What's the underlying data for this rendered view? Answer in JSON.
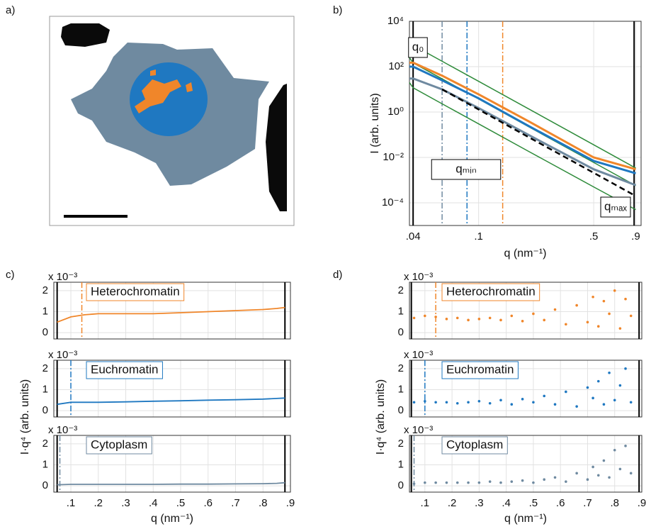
{
  "panel_labels": [
    "a)",
    "b)",
    "c)",
    "d)"
  ],
  "chart_data": [
    {
      "type": "line",
      "xlog": true,
      "ylog": true,
      "grid": true,
      "xlabel": "q (nm⁻¹)",
      "ylabel": "I (arb. units)",
      "xlim": [
        0.038,
        0.97
      ],
      "ylim": [
        1e-05,
        10000
      ],
      "xticks": [
        {
          "value": 0.04,
          "label": ".04"
        },
        {
          "value": 0.1,
          "label": ".1"
        },
        {
          "value": 0.5,
          "label": ".5"
        },
        {
          "value": 0.9,
          "label": ".9"
        }
      ],
      "yticks": [
        {
          "value": 0.0001,
          "label": "10⁻⁴"
        },
        {
          "value": 0.01,
          "label": "10⁻²"
        },
        {
          "value": 1,
          "label": "10⁰"
        },
        {
          "value": 100,
          "label": "10²"
        },
        {
          "value": 10000,
          "label": "10⁴"
        }
      ],
      "annotations": [
        "q₀",
        "qₘᵢₙ",
        "qₘₐₓ"
      ],
      "x": [
        0.038,
        0.04,
        0.06,
        0.1,
        0.2,
        0.5,
        0.9
      ],
      "series": [
        {
          "color": "#2e8b3a",
          "style": "solid",
          "values": [
            1500,
            875,
            173,
            22.5,
            1.41,
            0.036,
            0.0034
          ]
        },
        {
          "color": "#2e8b3a",
          "style": "solid",
          "values": [
            250,
            146,
            29,
            3.75,
            0.23,
            0.006,
            0.00057
          ]
        },
        {
          "color": "#2e8b3a",
          "style": "solid",
          "values": [
            20,
            11.7,
            2.3,
            0.3,
            0.019,
            0.0005,
            5e-05
          ]
        },
        {
          "color": "#f0862a",
          "style": "solid",
          "values": [
            150,
            150,
            40,
            6,
            0.4,
            0.01,
            0.003
          ]
        },
        {
          "color": "#1f78c1",
          "style": "solid",
          "values": [
            100,
            100,
            25,
            4,
            0.25,
            0.007,
            0.002
          ]
        },
        {
          "color": "#6f8aa0",
          "style": "solid",
          "values": [
            30,
            30,
            10,
            1.5,
            0.1,
            0.003,
            0.0006
          ]
        },
        {
          "color": "#000000",
          "style": "dashed",
          "values": [
            null,
            null,
            10,
            1.3,
            0.08,
            0.0021,
            0.0002
          ]
        }
      ],
      "vlines": [
        {
          "x": 0.04,
          "color": "#000000",
          "style": "solid"
        },
        {
          "x": 0.06,
          "color": "#6f8aa0",
          "style": "dashdot"
        },
        {
          "x": 0.085,
          "color": "#1f78c1",
          "style": "dashdot"
        },
        {
          "x": 0.14,
          "color": "#f0862a",
          "style": "dashdot"
        },
        {
          "x": 0.88,
          "color": "#000000",
          "style": "solid"
        }
      ]
    },
    {
      "type": "line",
      "grid": true,
      "y_multiplier": "x 10⁻³",
      "xlim": [
        0.038,
        0.9
      ],
      "ylim": [
        -0.3,
        2.4
      ],
      "yticks": [
        0,
        1,
        2
      ],
      "x": [
        0.05,
        0.1,
        0.15,
        0.2,
        0.3,
        0.4,
        0.5,
        0.6,
        0.7,
        0.8,
        0.85,
        0.88
      ],
      "series": [
        {
          "name": "Heterochromatin",
          "color": "#f0862a",
          "values": [
            0.5,
            0.75,
            0.85,
            0.9,
            0.9,
            0.9,
            0.95,
            1.0,
            1.05,
            1.1,
            1.15,
            1.2
          ]
        }
      ],
      "vlines": [
        {
          "x": 0.05,
          "color": "#000000",
          "style": "solid"
        },
        {
          "x": 0.14,
          "color": "#f0862a",
          "style": "dashdot"
        },
        {
          "x": 0.88,
          "color": "#000000",
          "style": "solid"
        }
      ]
    },
    {
      "type": "line",
      "grid": true,
      "y_multiplier": "x 10⁻³",
      "ylabel": "I·q⁴ (arb. units)",
      "xlim": [
        0.038,
        0.9
      ],
      "ylim": [
        -0.3,
        2.4
      ],
      "yticks": [
        0,
        1,
        2
      ],
      "x": [
        0.05,
        0.1,
        0.15,
        0.2,
        0.3,
        0.4,
        0.5,
        0.6,
        0.7,
        0.8,
        0.85,
        0.88
      ],
      "series": [
        {
          "name": "Euchromatin",
          "color": "#1f78c1",
          "values": [
            0.3,
            0.4,
            0.4,
            0.4,
            0.42,
            0.45,
            0.47,
            0.5,
            0.52,
            0.55,
            0.58,
            0.6
          ]
        }
      ],
      "vlines": [
        {
          "x": 0.05,
          "color": "#000000",
          "style": "solid"
        },
        {
          "x": 0.1,
          "color": "#1f78c1",
          "style": "dashdot"
        },
        {
          "x": 0.88,
          "color": "#000000",
          "style": "solid"
        }
      ]
    },
    {
      "type": "line",
      "grid": true,
      "y_multiplier": "x 10⁻³",
      "xlabel": "q (nm⁻¹)",
      "xlim": [
        0.038,
        0.9
      ],
      "ylim": [
        -0.3,
        2.4
      ],
      "yticks": [
        0,
        1,
        2
      ],
      "xticks": [
        {
          "value": 0.1,
          "label": ".1"
        },
        {
          "value": 0.2,
          "label": ".2"
        },
        {
          "value": 0.3,
          "label": ".3"
        },
        {
          "value": 0.4,
          "label": ".4"
        },
        {
          "value": 0.5,
          "label": ".5"
        },
        {
          "value": 0.6,
          "label": ".6"
        },
        {
          "value": 0.7,
          "label": ".7"
        },
        {
          "value": 0.8,
          "label": ".8"
        },
        {
          "value": 0.9,
          "label": ".9"
        }
      ],
      "x": [
        0.05,
        0.1,
        0.15,
        0.2,
        0.3,
        0.4,
        0.5,
        0.6,
        0.7,
        0.8,
        0.85,
        0.88
      ],
      "series": [
        {
          "name": "Cytoplasm",
          "color": "#6f8aa0",
          "values": [
            0.05,
            0.07,
            0.07,
            0.07,
            0.07,
            0.07,
            0.08,
            0.08,
            0.09,
            0.1,
            0.12,
            0.15
          ]
        }
      ],
      "vlines": [
        {
          "x": 0.05,
          "color": "#000000",
          "style": "solid"
        },
        {
          "x": 0.06,
          "color": "#6f8aa0",
          "style": "dashdot"
        },
        {
          "x": 0.88,
          "color": "#000000",
          "style": "solid"
        }
      ]
    },
    {
      "type": "scatter",
      "grid": true,
      "y_multiplier": "x 10⁻³",
      "xlim": [
        0.043,
        0.9
      ],
      "ylim": [
        -0.3,
        2.4
      ],
      "yticks": [
        0,
        1,
        2
      ],
      "x": [
        0.06,
        0.1,
        0.14,
        0.18,
        0.22,
        0.26,
        0.3,
        0.34,
        0.38,
        0.42,
        0.46,
        0.5,
        0.54,
        0.58,
        0.62,
        0.66,
        0.7,
        0.72,
        0.74,
        0.76,
        0.78,
        0.8,
        0.82,
        0.84,
        0.86
      ],
      "series": [
        {
          "name": "Heterochromatin",
          "color": "#f0862a",
          "values": [
            0.7,
            0.8,
            0.75,
            0.65,
            0.7,
            0.6,
            0.65,
            0.7,
            0.6,
            0.8,
            0.55,
            0.9,
            0.6,
            1.1,
            0.4,
            1.3,
            0.5,
            1.7,
            0.3,
            1.5,
            0.9,
            2.0,
            0.2,
            1.6,
            0.8
          ]
        }
      ],
      "vlines": [
        {
          "x": 0.05,
          "color": "#000000",
          "style": "solid"
        },
        {
          "x": 0.14,
          "color": "#f0862a",
          "style": "dashdot"
        },
        {
          "x": 0.89,
          "color": "#000000",
          "style": "solid"
        }
      ]
    },
    {
      "type": "scatter",
      "grid": true,
      "y_multiplier": "x 10⁻³",
      "ylabel": "I·q⁴ (arb. units)",
      "xlim": [
        0.043,
        0.9
      ],
      "ylim": [
        -0.3,
        2.4
      ],
      "yticks": [
        0,
        1,
        2
      ],
      "x": [
        0.06,
        0.1,
        0.14,
        0.18,
        0.22,
        0.26,
        0.3,
        0.34,
        0.38,
        0.42,
        0.46,
        0.5,
        0.54,
        0.58,
        0.62,
        0.66,
        0.7,
        0.72,
        0.74,
        0.76,
        0.78,
        0.8,
        0.82,
        0.84,
        0.86
      ],
      "series": [
        {
          "name": "Euchromatin",
          "color": "#1f78c1",
          "values": [
            0.4,
            0.45,
            0.4,
            0.4,
            0.35,
            0.4,
            0.45,
            0.35,
            0.5,
            0.3,
            0.55,
            0.4,
            0.7,
            0.3,
            0.9,
            0.2,
            1.1,
            0.6,
            1.4,
            0.3,
            1.8,
            0.5,
            1.2,
            2.0,
            0.4
          ]
        }
      ],
      "vlines": [
        {
          "x": 0.05,
          "color": "#000000",
          "style": "solid"
        },
        {
          "x": 0.1,
          "color": "#1f78c1",
          "style": "dashdot"
        },
        {
          "x": 0.89,
          "color": "#000000",
          "style": "solid"
        }
      ]
    },
    {
      "type": "scatter",
      "grid": true,
      "y_multiplier": "x 10⁻³",
      "xlabel": "q (nm⁻¹)",
      "xlim": [
        0.043,
        0.9
      ],
      "ylim": [
        -0.3,
        2.4
      ],
      "yticks": [
        0,
        1,
        2
      ],
      "xticks": [
        {
          "value": 0.1,
          "label": ".1"
        },
        {
          "value": 0.2,
          "label": ".2"
        },
        {
          "value": 0.3,
          "label": ".3"
        },
        {
          "value": 0.4,
          "label": ".4"
        },
        {
          "value": 0.5,
          "label": ".5"
        },
        {
          "value": 0.6,
          "label": ".6"
        },
        {
          "value": 0.7,
          "label": ".7"
        },
        {
          "value": 0.8,
          "label": ".8"
        },
        {
          "value": 0.9,
          "label": ".9"
        }
      ],
      "x": [
        0.06,
        0.1,
        0.14,
        0.18,
        0.22,
        0.26,
        0.3,
        0.34,
        0.38,
        0.42,
        0.46,
        0.5,
        0.54,
        0.58,
        0.62,
        0.66,
        0.7,
        0.72,
        0.74,
        0.76,
        0.78,
        0.8,
        0.82,
        0.84,
        0.86
      ],
      "series": [
        {
          "name": "Cytoplasm",
          "color": "#6f8aa0",
          "values": [
            0.1,
            0.15,
            0.15,
            0.15,
            0.15,
            0.15,
            0.15,
            0.2,
            0.15,
            0.2,
            0.25,
            0.15,
            0.3,
            0.4,
            0.2,
            0.6,
            0.3,
            0.9,
            0.5,
            1.2,
            0.4,
            1.7,
            0.8,
            1.9,
            0.6
          ]
        }
      ],
      "vlines": [
        {
          "x": 0.05,
          "color": "#000000",
          "style": "solid"
        },
        {
          "x": 0.06,
          "color": "#6f8aa0",
          "style": "dashdot"
        },
        {
          "x": 0.89,
          "color": "#000000",
          "style": "solid"
        }
      ]
    }
  ]
}
